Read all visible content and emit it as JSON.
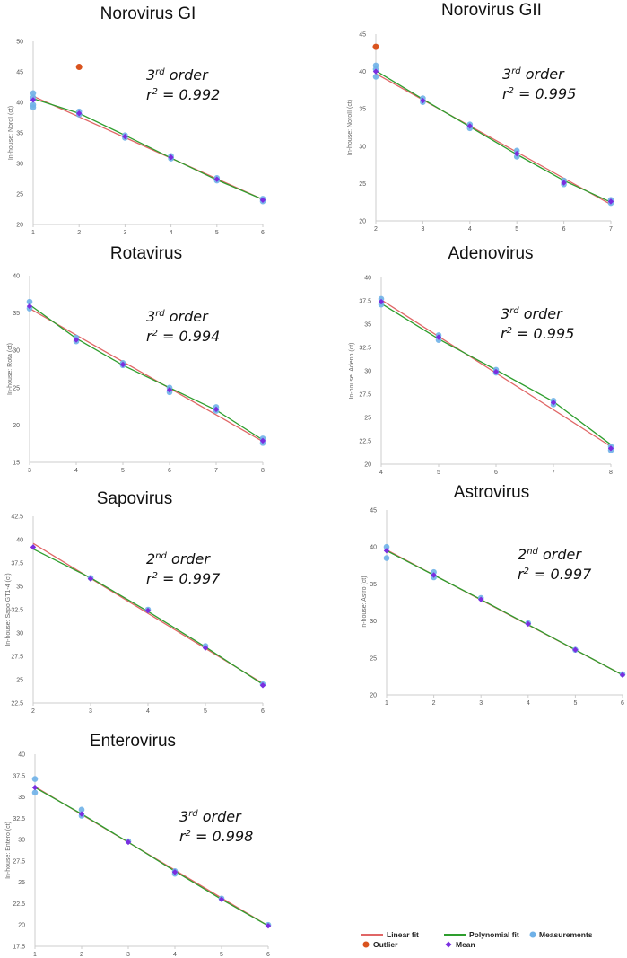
{
  "colors": {
    "linear": "#e06666",
    "poly": "#2e9e2e",
    "measure": "#6fb1e8",
    "mean": "#7a2ee0",
    "outlier": "#d9531e",
    "axis": "#cccccc"
  },
  "legend": {
    "linear": "Linear fit",
    "poly": "Polynomial fit",
    "measure": "Measurements",
    "outlier": "Outlier",
    "mean": "Mean"
  },
  "chart_data": [
    {
      "type": "scatter",
      "title": "Norovirus GI",
      "ylabel": "In-house: NoroI (ct)",
      "fit_order": "3rd order",
      "r2": "0.992",
      "xlim": [
        1,
        6
      ],
      "ylim": [
        20,
        50
      ],
      "xticks": [
        "1",
        "2",
        "3",
        "4",
        "5",
        "6"
      ],
      "yticks": [
        "20",
        "25",
        "30",
        "35",
        "40",
        "45",
        "50"
      ],
      "measurements": [
        [
          1,
          41.5
        ],
        [
          1,
          40.8
        ],
        [
          1,
          39.6
        ],
        [
          1,
          39.2
        ],
        [
          2,
          38.5
        ],
        [
          2,
          38.0
        ],
        [
          3,
          34.6
        ],
        [
          3,
          34.2
        ],
        [
          4,
          31.2
        ],
        [
          4,
          30.8
        ],
        [
          5,
          27.6
        ],
        [
          5,
          27.2
        ],
        [
          6,
          24.2
        ],
        [
          6,
          23.8
        ]
      ],
      "means": [
        [
          1,
          40.4
        ],
        [
          2,
          38.2
        ],
        [
          3,
          34.4
        ],
        [
          4,
          31.0
        ],
        [
          5,
          27.4
        ],
        [
          6,
          24.0
        ]
      ],
      "outliers": [
        [
          2,
          45.8
        ]
      ],
      "linear_fit": [
        [
          1,
          41.0
        ],
        [
          6,
          24.1
        ]
      ],
      "poly_fit": [
        [
          1,
          40.6
        ],
        [
          2,
          38.2
        ],
        [
          3,
          34.6
        ],
        [
          4,
          30.9
        ],
        [
          5,
          27.3
        ],
        [
          6,
          24.1
        ]
      ]
    },
    {
      "type": "scatter",
      "title": "Norovirus GII",
      "ylabel": "In-house: NoroII (ct)",
      "fit_order": "3rd order",
      "r2": "0.995",
      "xlim": [
        2,
        7
      ],
      "ylim": [
        20,
        45
      ],
      "xticks": [
        "2",
        "3",
        "4",
        "5",
        "6",
        "7"
      ],
      "yticks": [
        "20",
        "25",
        "30",
        "35",
        "40",
        "45"
      ],
      "measurements": [
        [
          2,
          40.8
        ],
        [
          2,
          40.3
        ],
        [
          2,
          39.3
        ],
        [
          3,
          36.4
        ],
        [
          3,
          35.9
        ],
        [
          4,
          32.9
        ],
        [
          4,
          32.4
        ],
        [
          5,
          29.4
        ],
        [
          5,
          28.6
        ],
        [
          6,
          25.4
        ],
        [
          6,
          24.9
        ],
        [
          7,
          22.8
        ],
        [
          7,
          22.4
        ]
      ],
      "means": [
        [
          2,
          40.0
        ],
        [
          3,
          36.1
        ],
        [
          4,
          32.7
        ],
        [
          5,
          29.0
        ],
        [
          6,
          25.1
        ],
        [
          7,
          22.6
        ]
      ],
      "outliers": [
        [
          2,
          43.3
        ]
      ],
      "linear_fit": [
        [
          2,
          39.7
        ],
        [
          7,
          22.2
        ]
      ],
      "poly_fit": [
        [
          2,
          40.1
        ],
        [
          3,
          36.3
        ],
        [
          4,
          32.6
        ],
        [
          5,
          28.9
        ],
        [
          6,
          25.4
        ],
        [
          7,
          22.5
        ]
      ]
    },
    {
      "type": "scatter",
      "title": "Rotavirus",
      "ylabel": "In-house: Rota (ct)",
      "fit_order": "3rd order",
      "r2": "0.994",
      "xlim": [
        3,
        8
      ],
      "ylim": [
        15,
        40
      ],
      "xticks": [
        "3",
        "4",
        "5",
        "6",
        "7",
        "8"
      ],
      "yticks": [
        "15",
        "20",
        "25",
        "30",
        "35",
        "40"
      ],
      "measurements": [
        [
          3,
          36.5
        ],
        [
          3,
          35.6
        ],
        [
          4,
          31.7
        ],
        [
          4,
          31.2
        ],
        [
          5,
          28.3
        ],
        [
          5,
          28.0
        ],
        [
          6,
          25.0
        ],
        [
          6,
          24.4
        ],
        [
          7,
          22.4
        ],
        [
          7,
          21.9
        ],
        [
          8,
          18.2
        ],
        [
          8,
          17.6
        ]
      ],
      "means": [
        [
          3,
          35.9
        ],
        [
          4,
          31.4
        ],
        [
          5,
          28.1
        ],
        [
          6,
          24.7
        ],
        [
          7,
          22.1
        ],
        [
          8,
          17.9
        ]
      ],
      "outliers": [],
      "linear_fit": [
        [
          3,
          35.6
        ],
        [
          8,
          17.8
        ]
      ],
      "poly_fit": [
        [
          3,
          36.1
        ],
        [
          4,
          31.6
        ],
        [
          5,
          28.0
        ],
        [
          6,
          25.0
        ],
        [
          7,
          22.0
        ],
        [
          8,
          18.0
        ]
      ]
    },
    {
      "type": "scatter",
      "title": "Adenovirus",
      "ylabel": "In-house: Adeno (ct)",
      "fit_order": "3rd order",
      "r2": "0.995",
      "xlim": [
        4,
        8
      ],
      "ylim": [
        20,
        40
      ],
      "xticks": [
        "4",
        "5",
        "6",
        "7",
        "8"
      ],
      "yticks": [
        "20",
        "22.5",
        "25",
        "27.5",
        "30",
        "32.5",
        "35",
        "37.5",
        "40"
      ],
      "measurements": [
        [
          4,
          37.7
        ],
        [
          4,
          37.1
        ],
        [
          5,
          33.8
        ],
        [
          5,
          33.3
        ],
        [
          6,
          30.1
        ],
        [
          6,
          29.8
        ],
        [
          7,
          26.8
        ],
        [
          7,
          26.4
        ],
        [
          8,
          21.9
        ],
        [
          8,
          21.5
        ]
      ],
      "means": [
        [
          4,
          37.4
        ],
        [
          5,
          33.6
        ],
        [
          6,
          29.9
        ],
        [
          7,
          26.6
        ],
        [
          8,
          21.7
        ]
      ],
      "outliers": [],
      "linear_fit": [
        [
          4,
          37.6
        ],
        [
          8,
          21.9
        ]
      ],
      "poly_fit": [
        [
          4,
          37.2
        ],
        [
          5,
          33.4
        ],
        [
          6,
          30.1
        ],
        [
          7,
          26.7
        ],
        [
          8,
          22.1
        ]
      ]
    },
    {
      "type": "scatter",
      "title": "Sapovirus",
      "ylabel": "In-house: Sapo GT1-4 (ct)",
      "fit_order": "2nd order",
      "r2": "0.997",
      "xlim": [
        2,
        6
      ],
      "ylim": [
        22.5,
        42.5
      ],
      "xticks": [
        "2",
        "3",
        "4",
        "5",
        "6"
      ],
      "yticks": [
        "22.5",
        "25",
        "27.5",
        "30",
        "32.5",
        "35",
        "37.5",
        "40",
        "42.5"
      ],
      "measurements": [
        [
          3,
          35.9
        ],
        [
          4,
          32.5
        ],
        [
          5,
          28.6
        ],
        [
          6,
          24.5
        ]
      ],
      "means": [
        [
          2,
          39.2
        ],
        [
          3,
          35.8
        ],
        [
          4,
          32.4
        ],
        [
          5,
          28.4
        ],
        [
          6,
          24.4
        ]
      ],
      "outliers": [],
      "linear_fit": [
        [
          2,
          39.6
        ],
        [
          6,
          24.6
        ]
      ],
      "poly_fit": [
        [
          2,
          39.0
        ],
        [
          3,
          35.9
        ],
        [
          4,
          32.3
        ],
        [
          5,
          28.5
        ],
        [
          6,
          24.5
        ]
      ]
    },
    {
      "type": "scatter",
      "title": "Astrovirus",
      "ylabel": "In-house: Astro (ct)",
      "fit_order": "2nd order",
      "r2": "0.997",
      "xlim": [
        1,
        6
      ],
      "ylim": [
        20,
        45
      ],
      "xticks": [
        "1",
        "2",
        "3",
        "4",
        "5",
        "6"
      ],
      "yticks": [
        "20",
        "25",
        "30",
        "35",
        "40",
        "45"
      ],
      "measurements": [
        [
          1,
          40.0
        ],
        [
          1,
          38.5
        ],
        [
          2,
          36.6
        ],
        [
          2,
          35.9
        ],
        [
          3,
          33.1
        ],
        [
          4,
          29.7
        ],
        [
          5,
          26.1
        ],
        [
          6,
          22.8
        ]
      ],
      "means": [
        [
          1,
          39.5
        ],
        [
          2,
          36.2
        ],
        [
          3,
          32.9
        ],
        [
          4,
          29.6
        ],
        [
          5,
          26.1
        ],
        [
          6,
          22.7
        ]
      ],
      "outliers": [],
      "linear_fit": [
        [
          1,
          39.6
        ],
        [
          6,
          22.7
        ]
      ],
      "poly_fit": [
        [
          1,
          39.5
        ],
        [
          2,
          36.2
        ],
        [
          3,
          32.9
        ],
        [
          4,
          29.5
        ],
        [
          5,
          26.1
        ],
        [
          6,
          22.7
        ]
      ]
    },
    {
      "type": "scatter",
      "title": "Enterovirus",
      "ylabel": "In-house: Entero (ct)",
      "fit_order": "3rd order",
      "r2": "0.998",
      "xlim": [
        1,
        6
      ],
      "ylim": [
        17.5,
        40
      ],
      "xticks": [
        "1",
        "2",
        "3",
        "4",
        "5",
        "6"
      ],
      "yticks": [
        "17.5",
        "20",
        "22.5",
        "25",
        "27.5",
        "30",
        "32.5",
        "35",
        "37.5",
        "40"
      ],
      "measurements": [
        [
          1,
          37.1
        ],
        [
          1,
          35.5
        ],
        [
          2,
          33.5
        ],
        [
          2,
          32.8
        ],
        [
          3,
          29.8
        ],
        [
          4,
          26.3
        ],
        [
          4,
          26.0
        ],
        [
          5,
          23.1
        ],
        [
          6,
          20.0
        ]
      ],
      "means": [
        [
          1,
          36.1
        ],
        [
          2,
          33.0
        ],
        [
          3,
          29.7
        ],
        [
          4,
          26.2
        ],
        [
          5,
          23.0
        ],
        [
          6,
          19.9
        ]
      ],
      "outliers": [],
      "linear_fit": [
        [
          1,
          36.2
        ],
        [
          6,
          19.9
        ]
      ],
      "poly_fit": [
        [
          1,
          36.1
        ],
        [
          2,
          33.0
        ],
        [
          3,
          29.7
        ],
        [
          4,
          26.3
        ],
        [
          5,
          23.0
        ],
        [
          6,
          19.9
        ]
      ]
    }
  ]
}
